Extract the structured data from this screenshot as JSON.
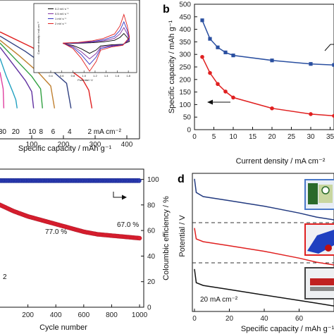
{
  "panels": {
    "b": {
      "label": "b"
    },
    "d": {
      "label": "d"
    }
  },
  "chart_data": [
    {
      "panel": "a",
      "type": "line",
      "xlabel": "Specific capacity / mAh g⁻¹",
      "ylabel": "",
      "x_ticks": [
        "100",
        "200",
        "300",
        "400"
      ],
      "xlim": [
        0,
        440
      ],
      "ylim": [
        0,
        1
      ],
      "rate_labels": [
        "30",
        "20",
        "10",
        "8",
        "6",
        "4",
        "2 mA cm⁻²"
      ],
      "series": [
        {
          "name": "30",
          "color": "#e040a0",
          "x": [
            0,
            10,
            12
          ],
          "y": [
            0.48,
            0.36,
            0.22
          ]
        },
        {
          "name": "20",
          "color": "#20a0c0",
          "x": [
            0,
            20,
            40,
            50,
            54
          ],
          "y": [
            0.58,
            0.45,
            0.34,
            0.28,
            0.22
          ]
        },
        {
          "name": "10",
          "color": "#6030a0",
          "x": [
            0,
            40,
            80,
            100,
            106
          ],
          "y": [
            0.66,
            0.54,
            0.42,
            0.34,
            0.22
          ]
        },
        {
          "name": "8",
          "color": "#30a040",
          "x": [
            0,
            50,
            100,
            128,
            134
          ],
          "y": [
            0.69,
            0.57,
            0.45,
            0.36,
            0.22
          ]
        },
        {
          "name": "6",
          "color": "#c08030",
          "x": [
            0,
            60,
            120,
            160,
            172
          ],
          "y": [
            0.71,
            0.6,
            0.48,
            0.38,
            0.22
          ]
        },
        {
          "name": "4",
          "color": "#304080",
          "x": [
            0,
            80,
            160,
            210,
            224
          ],
          "y": [
            0.74,
            0.63,
            0.5,
            0.4,
            0.22
          ]
        },
        {
          "name": "2",
          "color": "#e02020",
          "x": [
            0,
            100,
            200,
            260,
            280,
            290
          ],
          "y": [
            0.77,
            0.66,
            0.53,
            0.43,
            0.35,
            0.22
          ]
        }
      ],
      "inset": {
        "type": "line",
        "xlabel": "Potential / V",
        "ylabel": "Current density / mA cm⁻²",
        "x_ticks": [
          "0.4",
          "0.6",
          "0.8",
          "1.0",
          "1.2",
          "1.4",
          "1.6",
          "1.8"
        ],
        "xlim": [
          0.4,
          1.9
        ],
        "legend": [
          "0.2 mV s⁻¹",
          "0.5 mV s⁻¹",
          "1 mV s⁻¹",
          "2 mV s⁻¹"
        ],
        "colors": [
          "#000000",
          "#8030a0",
          "#3030c0",
          "#e02020"
        ]
      }
    },
    {
      "panel": "b",
      "type": "line",
      "xlabel": "Current density / mA cm⁻²",
      "ylabel": "Specific capacity / mAh g⁻¹",
      "x_ticks": [
        "0",
        "5",
        "10",
        "15",
        "20",
        "25",
        "30",
        "35"
      ],
      "y_ticks": [
        "0",
        "50",
        "100",
        "150",
        "200",
        "250",
        "300",
        "350",
        "400",
        "450",
        "500"
      ],
      "xlim": [
        0,
        36
      ],
      "ylim": [
        0,
        500
      ],
      "series": [
        {
          "name": "",
          "color": "#2a4fa0",
          "marker": "square",
          "x": [
            2,
            4,
            6,
            8,
            10,
            20,
            30,
            36
          ],
          "y": [
            436,
            362,
            328,
            308,
            296,
            276,
            262,
            258
          ]
        },
        {
          "name": "",
          "color": "#e02020",
          "marker": "circle",
          "x": [
            2,
            4,
            6,
            8,
            10,
            20,
            30,
            36
          ],
          "y": [
            290,
            226,
            182,
            152,
            128,
            85,
            62,
            55
          ]
        }
      ]
    },
    {
      "panel": "c",
      "type": "scatter",
      "xlabel": "Cycle number",
      "ylabel": "",
      "y2label": "Coloumbic efficiency / %",
      "x_ticks": [
        "200",
        "400",
        "600",
        "800",
        "1000"
      ],
      "y2_ticks": [
        "0",
        "20",
        "40",
        "60",
        "80",
        "100"
      ],
      "xlim": [
        0,
        1030
      ],
      "y2lim": [
        0,
        108
      ],
      "annotations": [
        "77.0 %",
        "67.0 %"
      ],
      "series": [
        {
          "name": "",
          "color": "#2a3ab0",
          "axis": "right",
          "x": [
            0,
            100,
            200,
            300,
            400,
            500,
            600,
            700,
            800,
            900,
            1000
          ],
          "y": [
            99,
            99,
            99,
            99,
            99,
            99,
            99,
            99,
            99,
            99,
            99
          ]
        },
        {
          "name": "",
          "color": "#e02030",
          "axis": "left",
          "x": [
            0,
            100,
            200,
            300,
            400,
            500,
            600,
            700,
            800,
            900,
            1000
          ],
          "y": [
            80,
            75,
            71,
            68,
            65,
            62,
            59,
            57,
            56,
            55,
            54
          ]
        }
      ]
    },
    {
      "panel": "d",
      "type": "line",
      "xlabel": "Specific capacity / mAh g⁻¹",
      "ylabel": "Potential / V",
      "x_ticks": [
        "0",
        "20",
        "40",
        "60"
      ],
      "xlim": [
        0,
        80
      ],
      "annotations": [
        "20 mA cm⁻²"
      ],
      "series": [
        {
          "name": "",
          "color": "#223a80",
          "x": [
            0,
            1,
            5,
            20,
            40,
            60,
            70,
            80
          ],
          "y": [
            0.96,
            0.86,
            0.83,
            0.8,
            0.76,
            0.71,
            0.68,
            0.66
          ]
        },
        {
          "name": "",
          "color": "#e02020",
          "x": [
            0,
            1,
            5,
            20,
            40,
            60,
            70,
            80
          ],
          "y": [
            0.6,
            0.52,
            0.5,
            0.47,
            0.43,
            0.38,
            0.35,
            0.33
          ]
        },
        {
          "name": "",
          "color": "#111111",
          "x": [
            0,
            1,
            5,
            20,
            40,
            60,
            70,
            80
          ],
          "y": [
            0.3,
            0.2,
            0.18,
            0.15,
            0.11,
            0.07,
            0.05,
            0.03
          ]
        }
      ]
    }
  ]
}
